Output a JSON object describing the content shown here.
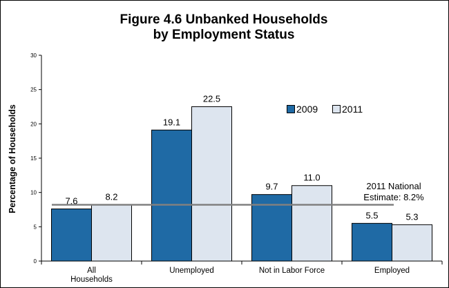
{
  "chart_data": {
    "type": "bar",
    "title_lines": [
      "Figure 4.6  Unbanked Households",
      "by Employment Status"
    ],
    "xlabel": "",
    "ylabel": "Percentage of Households",
    "categories": [
      "All Households",
      "Unemployed",
      "Not in Labor Force",
      "Employed"
    ],
    "series": [
      {
        "name": "2009",
        "values": [
          7.6,
          19.1,
          9.7,
          5.5
        ],
        "color": "#1f6aa5"
      },
      {
        "name": "2011",
        "values": [
          8.2,
          22.5,
          11.0,
          5.3
        ],
        "color": "#dde5ef"
      }
    ],
    "value_labels": {
      "2009": [
        "7.6",
        "19.1",
        "9.7",
        "5.5"
      ],
      "2011": [
        "8.2",
        "22.5",
        "11.0",
        "5.3"
      ]
    },
    "ylim": [
      0,
      30
    ],
    "yticks": [
      "0",
      "5",
      "10",
      "15",
      "20",
      "25",
      "30"
    ],
    "reference_line": {
      "value": 8.2,
      "label_lines": [
        "2011 National",
        "Estimate: 8.2%"
      ],
      "color": "#808080"
    },
    "legend_position": "top-right",
    "grid": false
  }
}
